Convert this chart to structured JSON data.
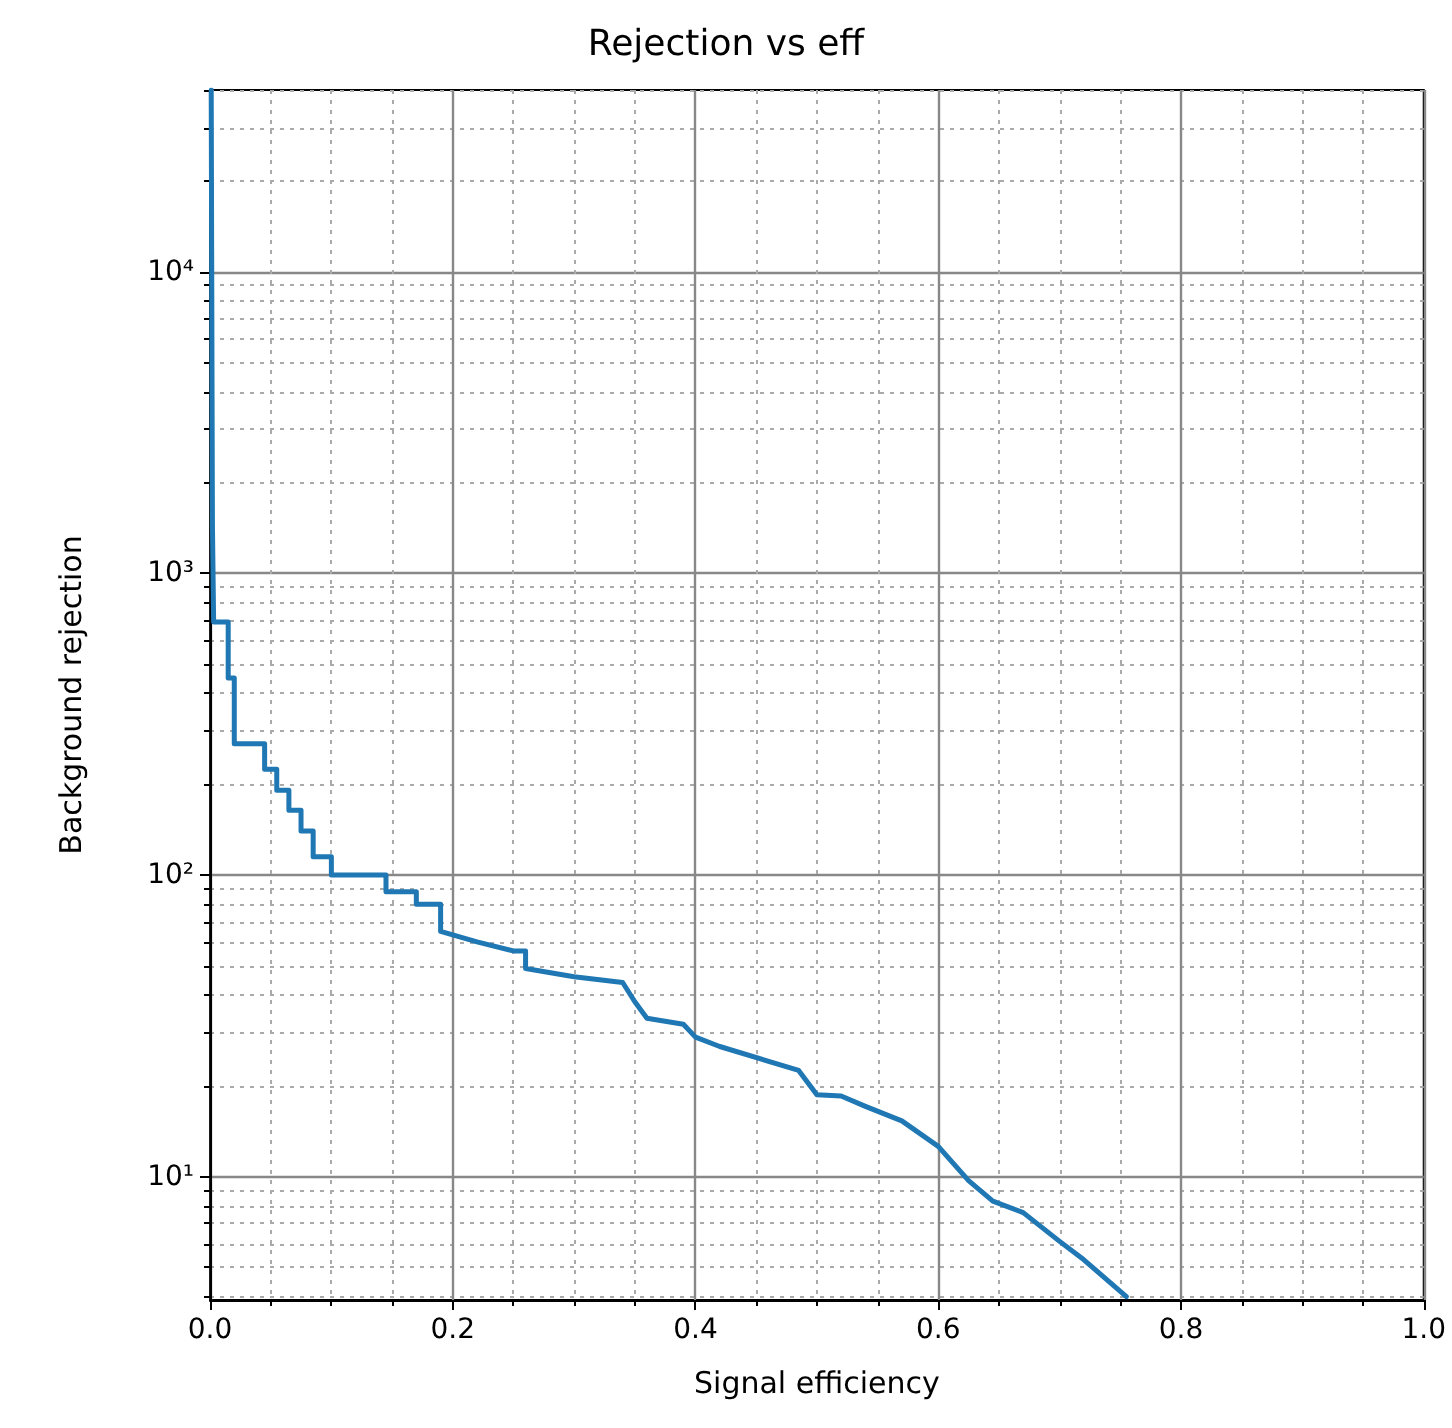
{
  "chart_data": {
    "type": "line",
    "title": "Rejection vs eff",
    "xlabel": "Signal efficiency",
    "ylabel": "Background rejection",
    "log": "y",
    "grid": true,
    "marker": "none",
    "line_style": "solid",
    "xlim": [
      0,
      1
    ],
    "ylim": [
      3.9,
      40000
    ],
    "xticks": [
      {
        "value": 0,
        "label": "0.0"
      },
      {
        "value": 0.05,
        "label": null
      },
      {
        "value": 0.1,
        "label": null
      },
      {
        "value": 0.15,
        "label": null
      },
      {
        "value": 0.2,
        "label": "0.2"
      },
      {
        "value": 0.25,
        "label": null
      },
      {
        "value": 0.3,
        "label": null
      },
      {
        "value": 0.35,
        "label": null
      },
      {
        "value": 0.4,
        "label": "0.4"
      },
      {
        "value": 0.45,
        "label": null
      },
      {
        "value": 0.5,
        "label": null
      },
      {
        "value": 0.55,
        "label": null
      },
      {
        "value": 0.6,
        "label": "0.6"
      },
      {
        "value": 0.65,
        "label": null
      },
      {
        "value": 0.7,
        "label": null
      },
      {
        "value": 0.75,
        "label": null
      },
      {
        "value": 0.8,
        "label": "0.8"
      },
      {
        "value": 0.85,
        "label": null
      },
      {
        "value": 0.9,
        "label": null
      },
      {
        "value": 0.95,
        "label": null
      },
      {
        "value": 1,
        "label": "1.0"
      }
    ],
    "yticks": [
      {
        "value": 4,
        "label": null
      },
      {
        "value": 5,
        "label": null
      },
      {
        "value": 6,
        "label": null
      },
      {
        "value": 7,
        "label": null
      },
      {
        "value": 8,
        "label": null
      },
      {
        "value": 9,
        "label": null
      },
      {
        "value": 10,
        "label": "10¹"
      },
      {
        "value": 20,
        "label": null
      },
      {
        "value": 30,
        "label": null
      },
      {
        "value": 40,
        "label": null
      },
      {
        "value": 50,
        "label": null
      },
      {
        "value": 60,
        "label": null
      },
      {
        "value": 70,
        "label": null
      },
      {
        "value": 80,
        "label": null
      },
      {
        "value": 90,
        "label": null
      },
      {
        "value": 100,
        "label": "10²"
      },
      {
        "value": 200,
        "label": null
      },
      {
        "value": 300,
        "label": null
      },
      {
        "value": 400,
        "label": null
      },
      {
        "value": 500,
        "label": null
      },
      {
        "value": 600,
        "label": null
      },
      {
        "value": 700,
        "label": null
      },
      {
        "value": 800,
        "label": null
      },
      {
        "value": 900,
        "label": null
      },
      {
        "value": 1000,
        "label": "10³"
      },
      {
        "value": 2000,
        "label": null
      },
      {
        "value": 3000,
        "label": null
      },
      {
        "value": 4000,
        "label": null
      },
      {
        "value": 5000,
        "label": null
      },
      {
        "value": 6000,
        "label": null
      },
      {
        "value": 7000,
        "label": null
      },
      {
        "value": 8000,
        "label": null
      },
      {
        "value": 9000,
        "label": null
      },
      {
        "value": 10000,
        "label": "10⁴"
      },
      {
        "value": 20000,
        "label": null
      },
      {
        "value": 30000,
        "label": null
      },
      {
        "value": 40000,
        "label": null
      }
    ],
    "series": [
      {
        "color": "#1f77b4",
        "x": [
          0.001,
          0.002,
          0.002,
          0.003,
          0.003,
          0.015,
          0.015,
          0.02,
          0.02,
          0.045,
          0.045,
          0.055,
          0.055,
          0.065,
          0.065,
          0.075,
          0.075,
          0.085,
          0.085,
          0.1,
          0.1,
          0.145,
          0.145,
          0.17,
          0.17,
          0.19,
          0.19,
          0.22,
          0.25,
          0.26,
          0.26,
          0.3,
          0.34,
          0.35,
          0.36,
          0.39,
          0.4,
          0.42,
          0.485,
          0.5,
          0.52,
          0.54,
          0.57,
          0.6,
          0.625,
          0.645,
          0.67,
          0.7,
          0.72,
          0.755
        ],
        "values": [
          40000,
          40000,
          1450,
          1450,
          690,
          690,
          450,
          450,
          272,
          272,
          224,
          224,
          191,
          191,
          164,
          164,
          140,
          140,
          115,
          115,
          100,
          100,
          88,
          88,
          80,
          80,
          65,
          60,
          56,
          56,
          49,
          46,
          44,
          38,
          33.5,
          32,
          29,
          27,
          22.5,
          18.7,
          18.5,
          17.1,
          15.3,
          12.6,
          9.7,
          8.3,
          7.6,
          6.1,
          5.3,
          4
        ]
      }
    ]
  }
}
